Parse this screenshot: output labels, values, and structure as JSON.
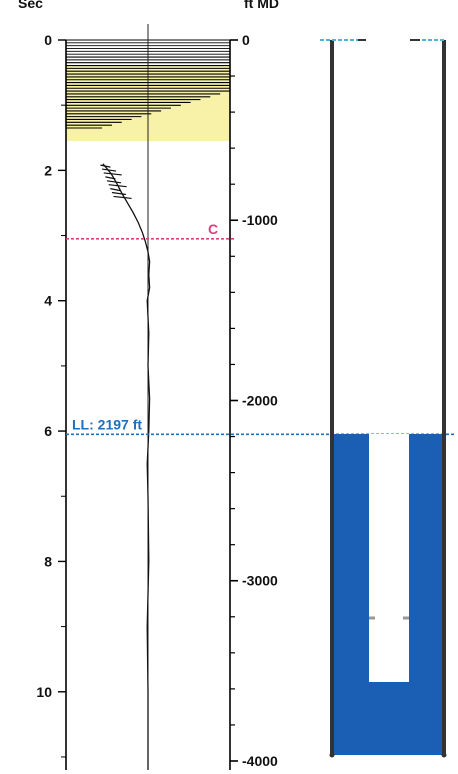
{
  "chart_data": [
    {
      "type": "line",
      "name": "acoustic-echo-trace",
      "left_axis": {
        "title": "Sec",
        "unit": "seconds",
        "range": [
          0,
          11.2
        ],
        "ticks": [
          0,
          2,
          4,
          6,
          8,
          10
        ],
        "tick_labels": [
          "0",
          "2",
          "4",
          "6",
          "8",
          "10"
        ]
      },
      "right_axis": {
        "title": "ft MD",
        "unit": "ft",
        "range": [
          0,
          4050
        ],
        "ticks": [
          0,
          1000,
          2000,
          3000,
          4000
        ],
        "tick_labels": [
          "0",
          "-1000",
          "-2000",
          "-3000",
          "-4000"
        ]
      },
      "markers": [
        {
          "id": "c",
          "label": "C",
          "depth_sec": 3.05,
          "color": "#e0407a"
        },
        {
          "id": "ll",
          "label": "LL: 2197 ft",
          "depth_sec": 6.05,
          "depth_ft": 2197,
          "color": "#1f6fbf"
        }
      ],
      "noise_zone": {
        "from_sec": 0.0,
        "to_sec": 1.55,
        "highlight_from_sec": 0.4,
        "highlight_to_sec": 1.55,
        "highlight_color": "#f7f2a8"
      },
      "trace": {
        "x_centerline_fraction": 0.5,
        "points": [
          [
            1.9,
            -0.55
          ],
          [
            2.05,
            -0.45
          ],
          [
            2.2,
            -0.38
          ],
          [
            2.35,
            -0.32
          ],
          [
            2.5,
            -0.25
          ],
          [
            2.65,
            -0.18
          ],
          [
            2.8,
            -0.12
          ],
          [
            2.95,
            -0.07
          ],
          [
            3.1,
            -0.03
          ],
          [
            3.25,
            0.0
          ],
          [
            3.4,
            0.02
          ],
          [
            3.6,
            0.01
          ],
          [
            3.8,
            0.02
          ],
          [
            4.0,
            -0.01
          ],
          [
            4.5,
            0.01
          ],
          [
            5.0,
            0.0
          ],
          [
            5.5,
            0.02
          ],
          [
            6.0,
            0.01
          ],
          [
            6.5,
            -0.01
          ],
          [
            7.0,
            0.0
          ],
          [
            8.0,
            0.01
          ],
          [
            9.0,
            -0.01
          ],
          [
            10.0,
            0.0
          ],
          [
            11.2,
            0.0
          ]
        ]
      }
    },
    {
      "type": "well-schematic",
      "name": "wellbore-diagram",
      "depth_range_ft": [
        0,
        4050
      ],
      "fluid_top_ft": 2197,
      "fluid_color": "#1a5fb4",
      "tubing_bottom_ft": 3600,
      "casing_color": "#333333",
      "surface_color": "#4fb3d9"
    }
  ]
}
